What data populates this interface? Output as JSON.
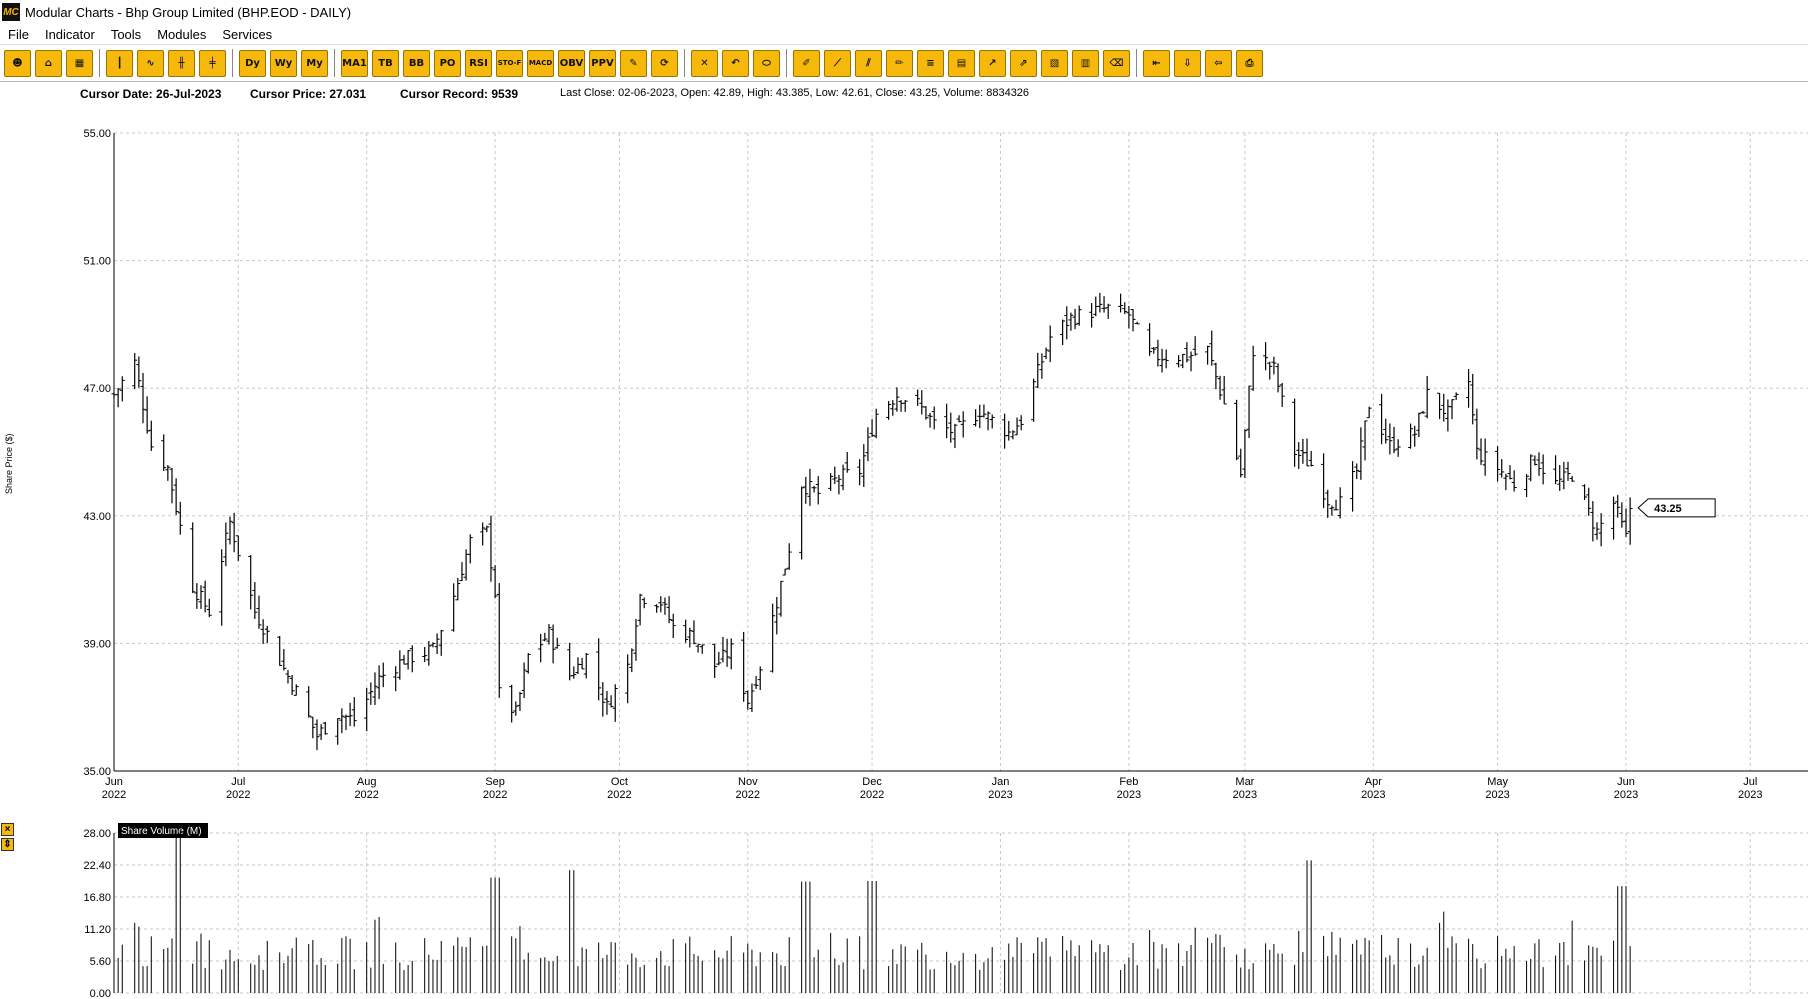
{
  "window": {
    "title": "Modular Charts - Bhp Group Limited (BHP.EOD - DAILY)",
    "logo_text": "MC"
  },
  "menu": [
    "File",
    "Indicator",
    "Tools",
    "Modules",
    "Services"
  ],
  "toolbar": {
    "groups": [
      [
        {
          "icon": "person-icon",
          "label": ""
        },
        {
          "icon": "home-icon",
          "label": ""
        },
        {
          "icon": "layout-icon",
          "label": ""
        }
      ],
      [
        {
          "icon": "bar-chart-icon",
          "label": ""
        },
        {
          "icon": "line-chart-icon",
          "label": ""
        },
        {
          "icon": "candle-icon",
          "label": ""
        },
        {
          "icon": "candle-filled-icon",
          "label": ""
        }
      ],
      [
        {
          "icon": "daily-icon",
          "label": "Dy"
        },
        {
          "icon": "weekly-icon",
          "label": "Wy"
        },
        {
          "icon": "monthly-icon",
          "label": "My"
        }
      ],
      [
        {
          "icon": "ma-icon",
          "label": "MA1"
        },
        {
          "icon": "tb-icon",
          "label": "TB"
        },
        {
          "icon": "bb-icon",
          "label": "BB"
        },
        {
          "icon": "po-icon",
          "label": "PO"
        },
        {
          "icon": "rsi-icon",
          "label": "RSI"
        },
        {
          "icon": "stoch-icon",
          "label": "STO-F"
        },
        {
          "icon": "macd-icon",
          "label": "MACD"
        },
        {
          "icon": "obv-icon",
          "label": "OBV"
        },
        {
          "icon": "ppv-icon",
          "label": "PPV"
        },
        {
          "icon": "pin-icon",
          "label": ""
        },
        {
          "icon": "refresh-icon",
          "label": ""
        }
      ],
      [
        {
          "icon": "close-icon",
          "label": ""
        },
        {
          "icon": "undo-icon",
          "label": ""
        },
        {
          "icon": "ellipse-icon",
          "label": ""
        }
      ],
      [
        {
          "icon": "pen-icon",
          "label": ""
        },
        {
          "icon": "ruler-icon",
          "label": ""
        },
        {
          "icon": "parallel-icon",
          "label": ""
        },
        {
          "icon": "pencil-icon",
          "label": ""
        },
        {
          "icon": "fib-icon",
          "label": ""
        },
        {
          "icon": "grid-icon",
          "label": ""
        },
        {
          "icon": "trend-icon",
          "label": ""
        },
        {
          "icon": "channel-icon",
          "label": ""
        },
        {
          "icon": "gann-icon",
          "label": ""
        },
        {
          "icon": "table-icon",
          "label": ""
        },
        {
          "icon": "eraser-icon",
          "label": ""
        }
      ],
      [
        {
          "icon": "split-icon",
          "label": ""
        },
        {
          "icon": "download-icon",
          "label": ""
        },
        {
          "icon": "import-icon",
          "label": ""
        },
        {
          "icon": "print-icon",
          "label": ""
        }
      ]
    ]
  },
  "info": {
    "cursor_date": "Cursor Date: 26-Jul-2023",
    "cursor_price": "Cursor Price: 27.031",
    "cursor_record": "Cursor Record: 9539",
    "last_close": "Last Close: 02-06-2023, Open: 42.89, High: 43.385, Low: 42.61, Close: 43.25, Volume: 8834326"
  },
  "price_panel": {
    "ylabel": "Share Price ($)",
    "last_label": "43.25",
    "colors": {
      "bars": "#000000",
      "grid": "#c8c8c8",
      "label_bg": "#ffffff"
    }
  },
  "volume_panel": {
    "title": "Share Volume (M)",
    "controls": [
      "close-icon",
      "collapse-icon"
    ]
  },
  "chart_data": [
    {
      "type": "ohlc",
      "title": "",
      "ylabel": "Share Price ($)",
      "ylim": [
        35,
        55
      ],
      "yticks": [
        "35.00",
        "39.00",
        "43.00",
        "47.00",
        "51.00",
        "55.00"
      ],
      "xticks": [
        {
          "m": "Jun",
          "y": "2022",
          "d": "2022-06-01"
        },
        {
          "m": "Jul",
          "y": "2022",
          "d": "2022-07-01"
        },
        {
          "m": "Aug",
          "y": "2022",
          "d": "2022-08-01"
        },
        {
          "m": "Sep",
          "y": "2022",
          "d": "2022-09-01"
        },
        {
          "m": "Oct",
          "y": "2022",
          "d": "2022-10-01"
        },
        {
          "m": "Nov",
          "y": "2022",
          "d": "2022-11-01"
        },
        {
          "m": "Dec",
          "y": "2022",
          "d": "2022-12-01"
        },
        {
          "m": "Jan",
          "y": "2023",
          "d": "2023-01-01"
        },
        {
          "m": "Feb",
          "y": "2023",
          "d": "2023-02-01"
        },
        {
          "m": "Mar",
          "y": "2023",
          "d": "2023-03-01"
        },
        {
          "m": "Apr",
          "y": "2023",
          "d": "2023-04-01"
        },
        {
          "m": "May",
          "y": "2023",
          "d": "2023-05-01"
        },
        {
          "m": "Jun",
          "y": "2023",
          "d": "2023-06-01"
        },
        {
          "m": "Jul",
          "y": "2023",
          "d": "2023-07-01"
        }
      ],
      "key_points": [
        [
          "2022-06-01",
          46.8
        ],
        [
          "2022-06-06",
          47.8
        ],
        [
          "2022-06-10",
          45.2
        ],
        [
          "2022-06-14",
          44.5
        ],
        [
          "2022-06-20",
          40.8
        ],
        [
          "2022-06-24",
          40.0
        ],
        [
          "2022-06-29",
          42.8
        ],
        [
          "2022-07-05",
          40.0
        ],
        [
          "2022-07-08",
          39.3
        ],
        [
          "2022-07-12",
          38.2
        ],
        [
          "2022-07-15",
          37.5
        ],
        [
          "2022-07-20",
          36.1
        ],
        [
          "2022-07-25",
          36.8
        ],
        [
          "2022-07-29",
          36.6
        ],
        [
          "2022-08-04",
          37.9
        ],
        [
          "2022-08-10",
          38.5
        ],
        [
          "2022-08-17",
          38.8
        ],
        [
          "2022-08-22",
          40.5
        ],
        [
          "2022-08-26",
          42.2
        ],
        [
          "2022-08-30",
          42.5
        ],
        [
          "2022-09-01",
          40.6
        ],
        [
          "2022-09-02",
          37.4
        ],
        [
          "2022-09-06",
          36.8
        ],
        [
          "2022-09-09",
          38.6
        ],
        [
          "2022-09-14",
          39.3
        ],
        [
          "2022-09-19",
          38.0
        ],
        [
          "2022-09-23",
          38.6
        ],
        [
          "2022-09-28",
          37.0
        ],
        [
          "2022-10-03",
          38.3
        ],
        [
          "2022-10-06",
          40.5
        ],
        [
          "2022-10-11",
          40.3
        ],
        [
          "2022-10-14",
          39.5
        ],
        [
          "2022-10-19",
          39.2
        ],
        [
          "2022-10-24",
          38.3
        ],
        [
          "2022-10-28",
          38.8
        ],
        [
          "2022-11-01",
          37.2
        ],
        [
          "2022-11-04",
          38.3
        ],
        [
          "2022-11-08",
          40.3
        ],
        [
          "2022-11-11",
          42.0
        ],
        [
          "2022-11-14",
          44.0
        ],
        [
          "2022-11-18",
          43.7
        ],
        [
          "2022-11-23",
          44.2
        ],
        [
          "2022-11-28",
          44.4
        ],
        [
          "2022-12-02",
          46.2
        ],
        [
          "2022-12-07",
          46.8
        ],
        [
          "2022-12-12",
          46.5
        ],
        [
          "2022-12-16",
          45.9
        ],
        [
          "2022-12-21",
          45.6
        ],
        [
          "2022-12-27",
          46.3
        ],
        [
          "2023-01-03",
          45.6
        ],
        [
          "2023-01-06",
          46.0
        ],
        [
          "2023-01-10",
          47.5
        ],
        [
          "2023-01-13",
          48.6
        ],
        [
          "2023-01-18",
          49.2
        ],
        [
          "2023-01-23",
          49.4
        ],
        [
          "2023-01-27",
          49.5
        ],
        [
          "2023-02-01",
          49.3
        ],
        [
          "2023-02-06",
          48.0
        ],
        [
          "2023-02-10",
          48.0
        ],
        [
          "2023-02-15",
          48.0
        ],
        [
          "2023-02-20",
          48.2
        ],
        [
          "2023-02-24",
          46.5
        ],
        [
          "2023-02-28",
          44.3
        ],
        [
          "2023-03-03",
          48.2
        ],
        [
          "2023-03-08",
          47.6
        ],
        [
          "2023-03-13",
          45.0
        ],
        [
          "2023-03-17",
          44.6
        ],
        [
          "2023-03-21",
          43.5
        ],
        [
          "2023-03-24",
          43.4
        ],
        [
          "2023-03-28",
          44.4
        ],
        [
          "2023-03-31",
          46.5
        ],
        [
          "2023-04-05",
          45.2
        ],
        [
          "2023-04-11",
          45.6
        ],
        [
          "2023-04-14",
          46.8
        ],
        [
          "2023-04-19",
          46.2
        ],
        [
          "2023-04-24",
          47.2
        ],
        [
          "2023-04-26",
          45.0
        ],
        [
          "2023-05-01",
          44.5
        ],
        [
          "2023-05-05",
          44.0
        ],
        [
          "2023-05-10",
          44.8
        ],
        [
          "2023-05-15",
          44.0
        ],
        [
          "2023-05-19",
          44.3
        ],
        [
          "2023-05-25",
          42.5
        ],
        [
          "2023-05-29",
          43.4
        ],
        [
          "2023-06-01",
          42.3
        ],
        [
          "2023-06-02",
          43.25
        ]
      ]
    },
    {
      "type": "bar",
      "title": "Share Volume (M)",
      "ylim": [
        0,
        28
      ],
      "yticks": [
        "0.00",
        "5.60",
        "11.20",
        "16.80",
        "22.40",
        "28.00"
      ],
      "spikes": [
        [
          "2022-06-17",
          28.5
        ],
        [
          "2022-09-01",
          20.2
        ],
        [
          "2022-09-19",
          21.5
        ],
        [
          "2022-11-15",
          19.5
        ],
        [
          "2022-12-01",
          19.6
        ],
        [
          "2023-03-17",
          23.2
        ],
        [
          "2023-05-31",
          18.7
        ]
      ]
    }
  ]
}
